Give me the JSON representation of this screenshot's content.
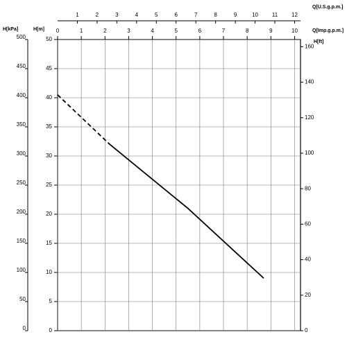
{
  "chart_data": {
    "type": "line",
    "y_label": "H[m]",
    "ylim": [
      0,
      50
    ],
    "yticks": [
      0,
      5,
      10,
      15,
      20,
      25,
      30,
      35,
      40,
      45,
      50
    ],
    "y_kpa_label": "H[kPa]",
    "y_kpa_lim": [
      0,
      500
    ],
    "y_kpa_ticks": [
      0,
      50,
      100,
      150,
      200,
      250,
      300,
      350,
      400,
      450,
      500
    ],
    "y2_label": "H[ft]",
    "y2lim": [
      0,
      164.04
    ],
    "y2ticks": [
      0,
      20,
      40,
      60,
      80,
      100,
      120,
      140,
      160
    ],
    "x_label": "Q[Imp.g.p.m.]",
    "xlim": [
      0,
      10.25
    ],
    "xticks": [
      0,
      1,
      2,
      3,
      4,
      5,
      6,
      7,
      8,
      9,
      10
    ],
    "x2_label": "Q[U.S.g.p.m.]",
    "x2lim": [
      0,
      12.3
    ],
    "x2ticks": [
      1,
      2,
      3,
      4,
      5,
      6,
      7,
      8,
      9,
      10,
      11,
      12
    ],
    "grid": true,
    "series": [
      {
        "color": "#000000",
        "dash": true,
        "x": [
          0,
          2.2
        ],
        "values": [
          40.5,
          32
        ]
      },
      {
        "color": "#000000",
        "dash": false,
        "x": [
          2.2,
          5.5,
          8.7
        ],
        "values": [
          32,
          21,
          9
        ]
      }
    ]
  }
}
